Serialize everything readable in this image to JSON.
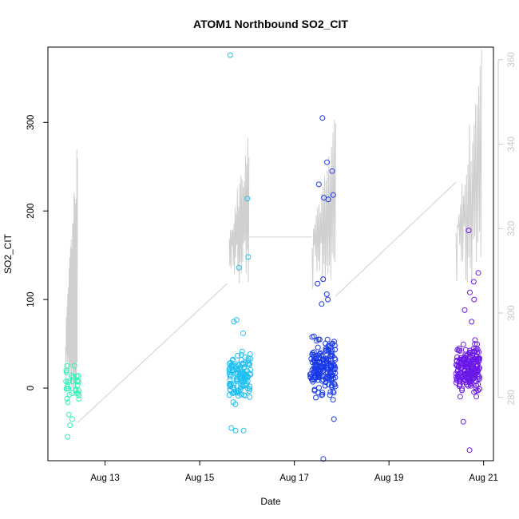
{
  "chart_data": {
    "type": "scatter",
    "title": "ATOM1 Northbound SO2_CIT",
    "xlabel": "Date",
    "ylabel": "SO2_CIT",
    "x_range": [
      "2021-08-11T19:00",
      "2021-08-21T05:00"
    ],
    "ylim": [
      -82,
      385
    ],
    "y2lim": [
      265,
      363
    ],
    "x_ticks": [
      {
        "label": "Aug 13",
        "date": "2021-08-13"
      },
      {
        "label": "Aug 15",
        "date": "2021-08-15"
      },
      {
        "label": "Aug 17",
        "date": "2021-08-17"
      },
      {
        "label": "Aug 19",
        "date": "2021-08-19"
      },
      {
        "label": "Aug 21",
        "date": "2021-08-21"
      }
    ],
    "y_ticks": [
      0,
      100,
      200,
      300
    ],
    "y2_ticks": [
      280,
      300,
      320,
      340,
      360
    ],
    "colors": {
      "aug12": "#2cf5b8",
      "aug15": "#22bff0",
      "aug17": "#1a3ae8",
      "aug20": "#6a18e8",
      "secondary_line": "#cfcfcf",
      "axis": "#000000",
      "secondary_axis": "#c8c8c8"
    },
    "series": [
      {
        "color_key": "aug12",
        "time_start": "2021-08-12T04:00",
        "time_end": "2021-08-12T11:00",
        "points_approx": 35,
        "y_core_range": [
          -25,
          25
        ],
        "y_extremes": [
          -55,
          -42,
          -35,
          -30,
          18,
          20,
          25,
          25
        ]
      },
      {
        "color_key": "aug15",
        "time_start": "2021-08-15T15:00",
        "time_end": "2021-08-16T02:00",
        "points_approx": 140,
        "y_core_range": [
          -25,
          50
        ],
        "y_extremes": [
          376,
          214,
          148,
          136,
          77,
          75,
          62,
          -45,
          -48,
          -48
        ]
      },
      {
        "color_key": "aug17",
        "time_start": "2021-08-17T08:00",
        "time_end": "2021-08-17T21:00",
        "points_approx": 200,
        "y_core_range": [
          -20,
          65
        ],
        "y_extremes": [
          305,
          255,
          245,
          230,
          218,
          215,
          213,
          123,
          118,
          106,
          100,
          95,
          -35,
          -80
        ]
      },
      {
        "color_key": "aug20",
        "time_start": "2021-08-20T10:00",
        "time_end": "2021-08-20T22:00",
        "points_approx": 210,
        "y_core_range": [
          -15,
          60
        ],
        "y_extremes": [
          178,
          130,
          120,
          108,
          100,
          88,
          75,
          -38,
          -70
        ]
      }
    ],
    "secondary_series": {
      "axis": "right",
      "type": "line",
      "bursts": [
        {
          "start": "2021-08-12T04:00",
          "end": "2021-08-12T10:00",
          "min": 274,
          "max": 343
        },
        {
          "start": "2021-08-15T15:00",
          "end": "2021-08-16T01:00",
          "min": 305,
          "max": 346
        },
        {
          "start": "2021-08-17T09:00",
          "end": "2021-08-17T21:00",
          "min": 303,
          "max": 348
        },
        {
          "start": "2021-08-20T10:00",
          "end": "2021-08-20T23:00",
          "min": 303,
          "max": 363
        }
      ],
      "connectors": [
        {
          "from": [
            "2021-08-12T10:00",
            274
          ],
          "to": [
            "2021-08-15T14:00",
            307
          ]
        },
        {
          "from": [
            "2021-08-16T01:00",
            318
          ],
          "to": [
            "2021-08-17T09:00",
            318
          ]
        },
        {
          "from": [
            "2021-08-17T21:00",
            304
          ],
          "to": [
            "2021-08-20T10:00",
            331
          ]
        }
      ]
    }
  }
}
